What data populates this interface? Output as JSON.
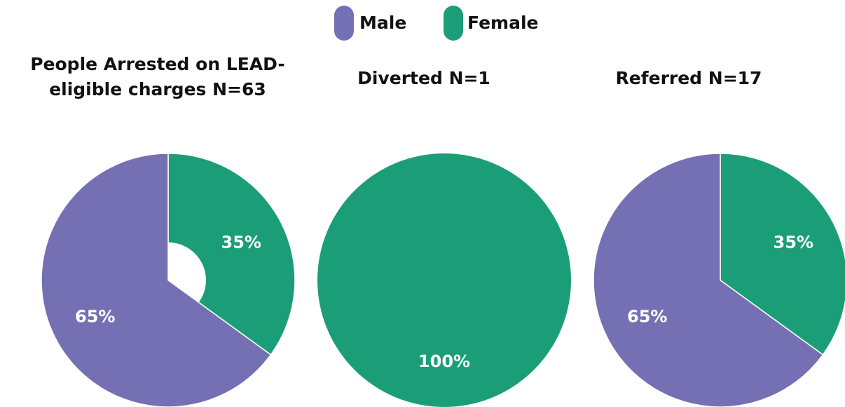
{
  "chart_data": [
    {
      "type": "pie",
      "title": "People Arrested on LEAD-eligible charges N=63",
      "categories": [
        "Male",
        "Female"
      ],
      "values": [
        65,
        35
      ],
      "value_labels": [
        "65%",
        "35%"
      ],
      "colors": [
        "#7570b3",
        "#1b9e77"
      ]
    },
    {
      "type": "pie",
      "title": "Diverted N=1",
      "categories": [
        "Male",
        "Female"
      ],
      "values": [
        0,
        100
      ],
      "value_labels": [
        null,
        "100%"
      ],
      "colors": [
        "#7570b3",
        "#1b9e77"
      ]
    },
    {
      "type": "pie",
      "title": "Referred N=17",
      "categories": [
        "Male",
        "Female"
      ],
      "values": [
        65,
        35
      ],
      "value_labels": [
        "65%",
        "35%"
      ],
      "colors": [
        "#7570b3",
        "#1b9e77"
      ]
    }
  ]
}
